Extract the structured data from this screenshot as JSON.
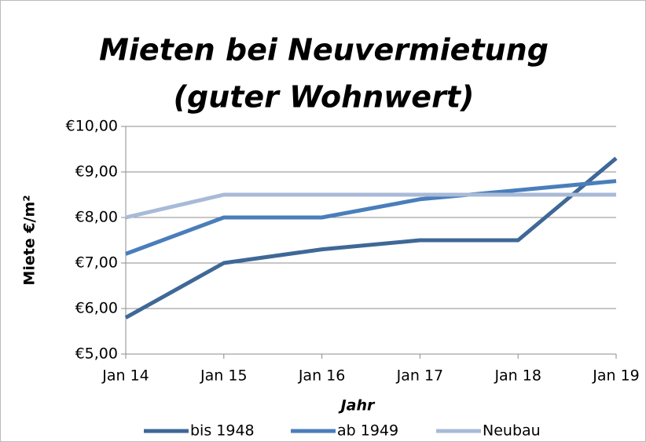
{
  "chart_data": {
    "type": "line",
    "title": [
      "Mieten bei Neuvermietung",
      "(guter Wohnwert)"
    ],
    "x_label": "Jahr",
    "y_label": "Miete €/m²",
    "categories": [
      "Jan 14",
      "Jan 15",
      "Jan 16",
      "Jan 17",
      "Jan 18",
      "Jan 19"
    ],
    "series": [
      {
        "name": "bis 1948",
        "color": "#3f6897",
        "values": [
          5.8,
          7.0,
          7.3,
          7.5,
          7.5,
          9.3
        ]
      },
      {
        "name": "ab 1949",
        "color": "#4a7ebb",
        "values": [
          7.2,
          8.0,
          8.0,
          8.4,
          8.6,
          8.8
        ]
      },
      {
        "name": "Neubau",
        "color": "#a8bad7",
        "values": [
          8.0,
          8.5,
          8.5,
          8.5,
          8.5,
          8.5
        ]
      }
    ],
    "ylim": [
      5,
      10
    ],
    "yticks": [
      {
        "value": 5,
        "label": "€5,00"
      },
      {
        "value": 6,
        "label": "€6,00"
      },
      {
        "value": 7,
        "label": "€7,00"
      },
      {
        "value": 8,
        "label": "€8,00"
      },
      {
        "value": 9,
        "label": "€9,00"
      },
      {
        "value": 10,
        "label": "€10,00"
      }
    ],
    "grid": true,
    "legend": "bottom"
  }
}
